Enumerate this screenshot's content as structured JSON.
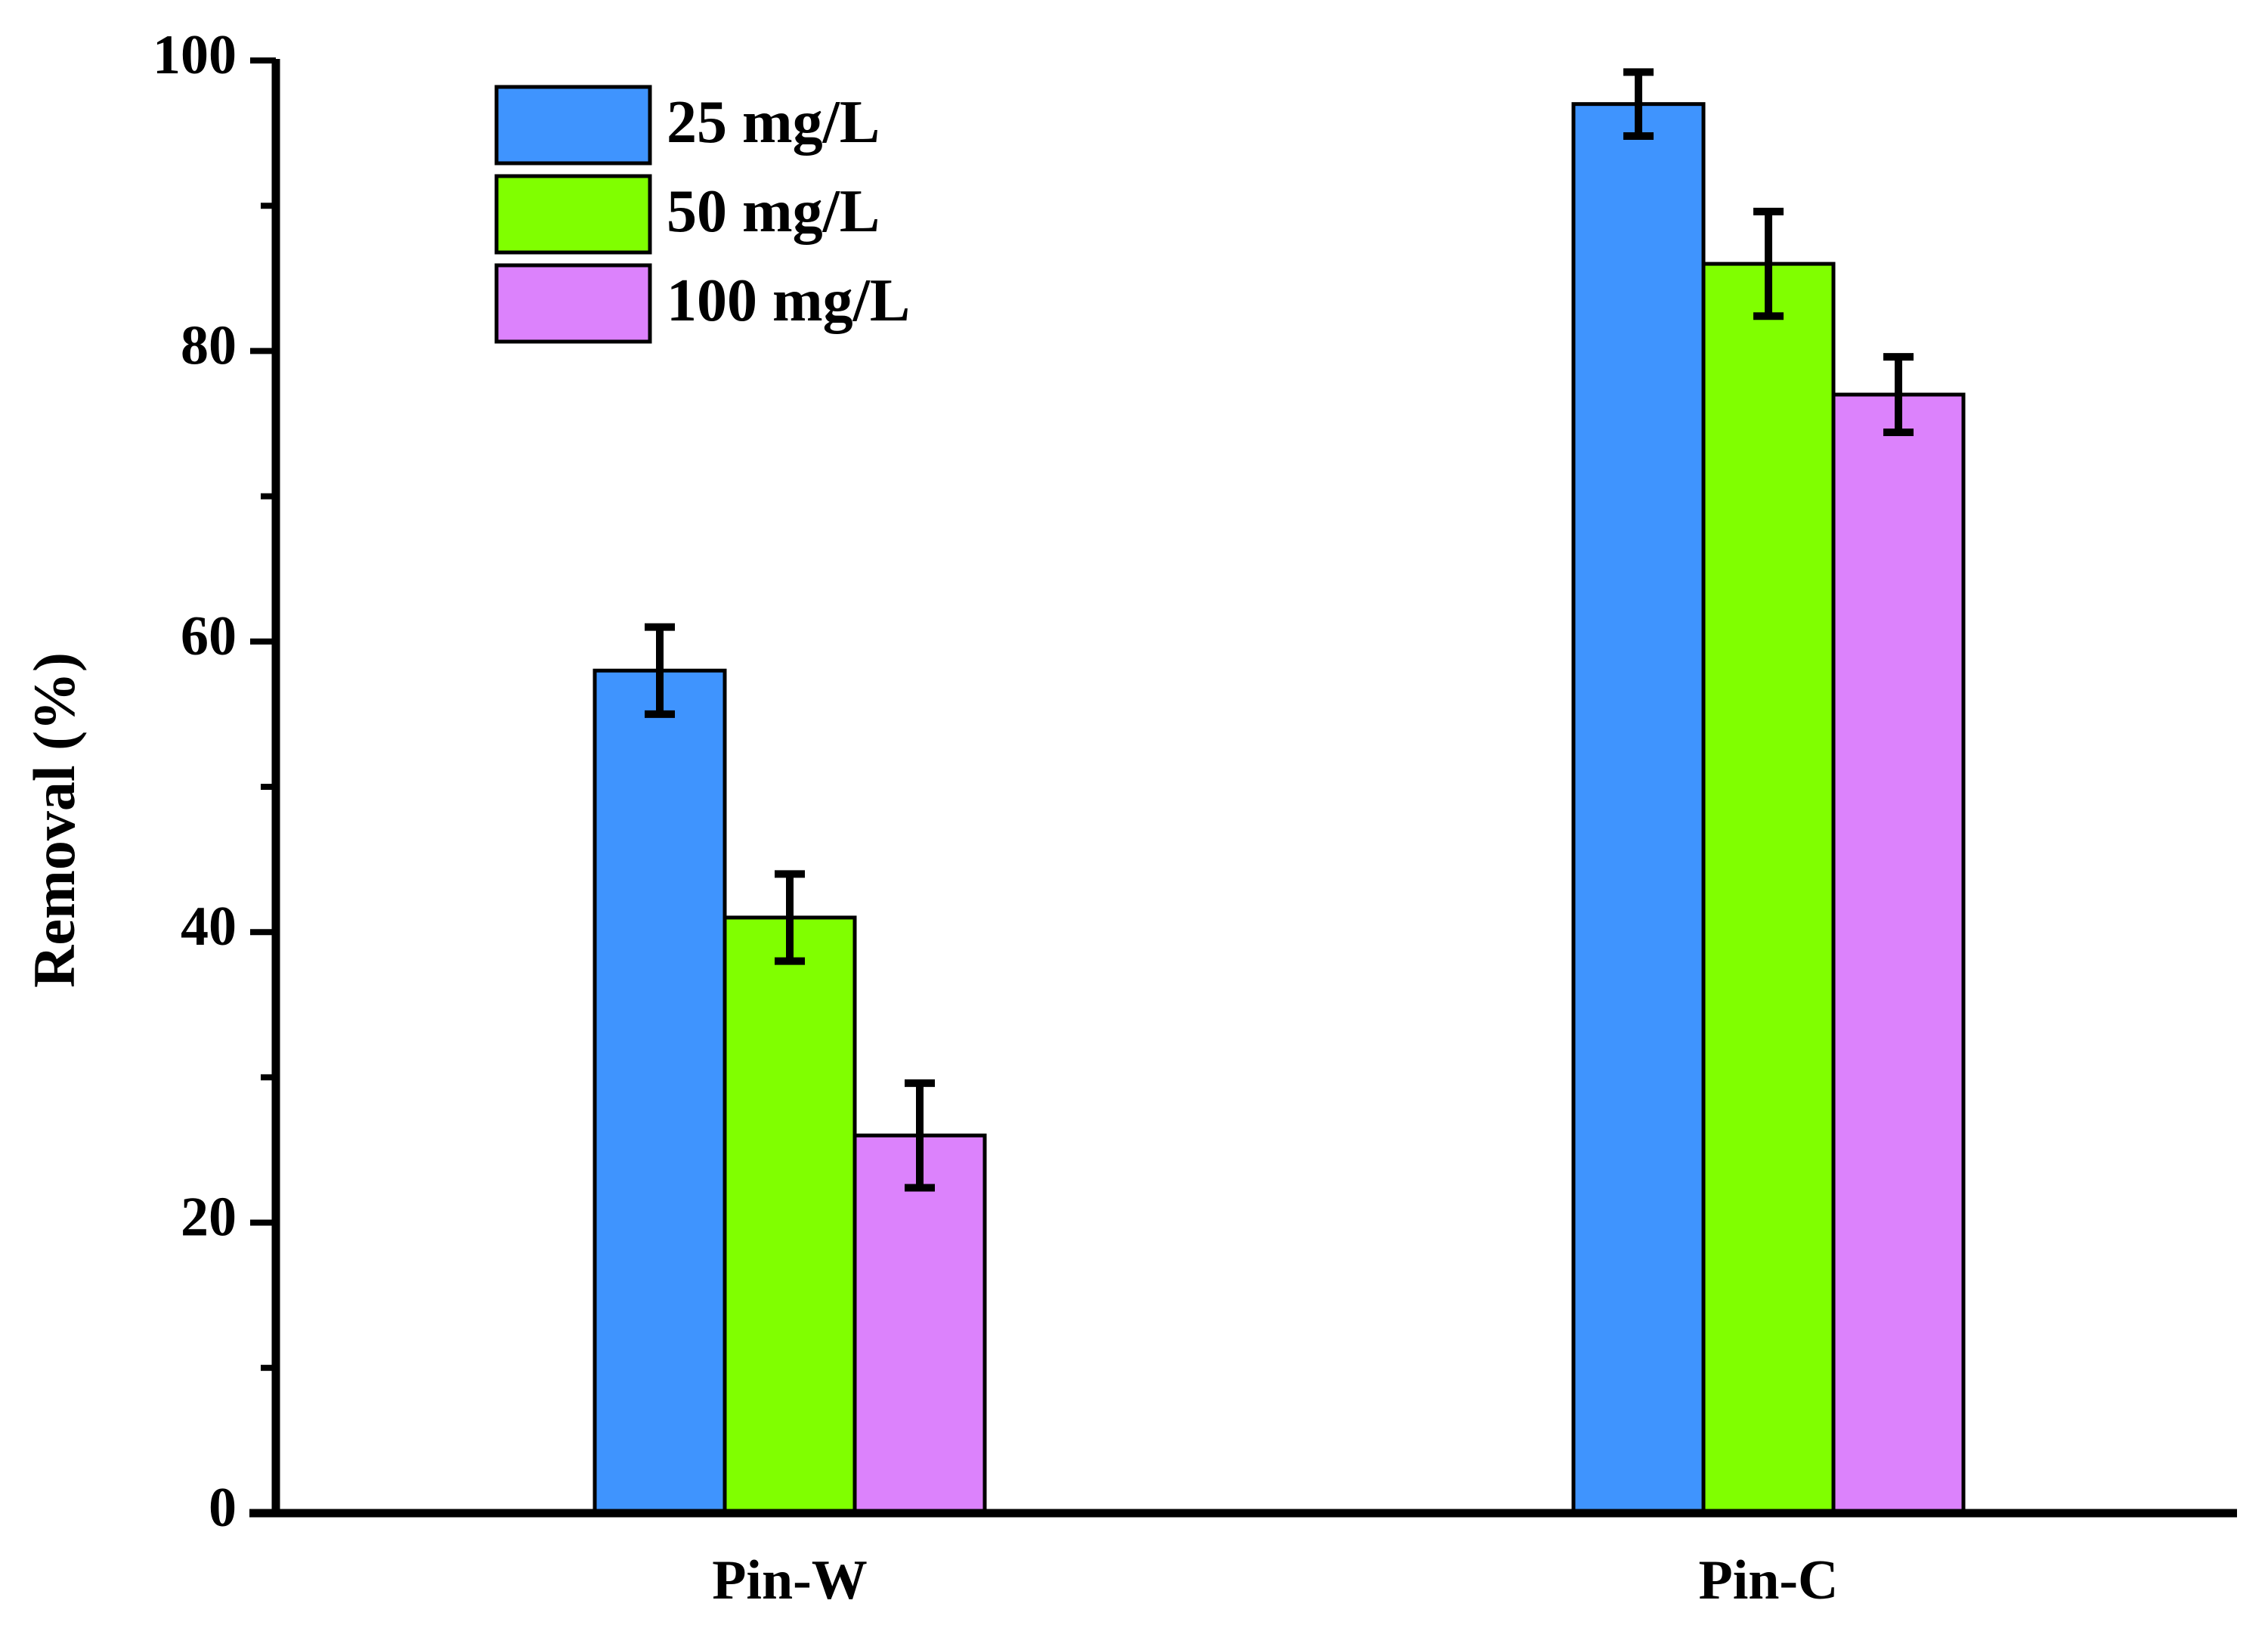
{
  "chart_data": {
    "type": "bar",
    "title": "",
    "xlabel": "",
    "ylabel": "Removal (%)",
    "ylim": [
      0,
      100
    ],
    "yticks": [
      0,
      20,
      40,
      60,
      80,
      100
    ],
    "yticks_minor": [
      10,
      30,
      50,
      70,
      90
    ],
    "categories": [
      "Pin-W",
      "Pin-C"
    ],
    "series": [
      {
        "name": "25 mg/L",
        "color": "#3f94fe",
        "values": [
          58,
          97
        ],
        "errors": [
          3.0,
          2.2
        ]
      },
      {
        "name": "50 mg/L",
        "color": "#80ff00",
        "values": [
          41,
          86
        ],
        "errors": [
          3.0,
          3.6
        ]
      },
      {
        "name": "100 mg/L",
        "color": "#dc82fc",
        "values": [
          26,
          77
        ],
        "errors": [
          3.6,
          2.6
        ]
      }
    ],
    "legend_position": "top-left",
    "grid": false
  }
}
